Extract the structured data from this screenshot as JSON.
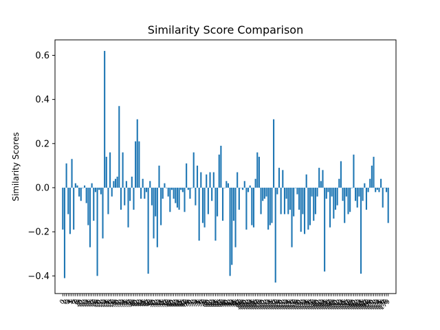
{
  "chart_data": {
    "type": "bar",
    "title": "Similarity Score Comparison",
    "xlabel": "",
    "ylabel": "Similarity Scores",
    "ylim": [
      -0.48,
      0.67
    ],
    "yticks": [
      -0.4,
      -0.2,
      0.0,
      0.2,
      0.4,
      0.6
    ],
    "ytick_labels": [
      "−0.4",
      "−0.2",
      "0.0",
      "0.2",
      "0.4",
      "0.6"
    ],
    "bar_color": "#1f77b4",
    "grid": false,
    "values": [
      -0.19,
      -0.41,
      0.11,
      -0.12,
      -0.21,
      0.13,
      -0.19,
      0.02,
      0.01,
      -0.04,
      -0.06,
      0.0,
      0.01,
      -0.07,
      -0.17,
      -0.27,
      0.02,
      -0.15,
      -0.02,
      -0.4,
      -0.01,
      -0.03,
      -0.23,
      0.62,
      0.14,
      -0.12,
      0.16,
      -0.04,
      0.03,
      0.04,
      0.05,
      0.37,
      -0.1,
      0.16,
      -0.08,
      0.03,
      -0.18,
      -0.06,
      0.05,
      -0.1,
      0.21,
      0.31,
      0.21,
      -0.05,
      0.04,
      -0.05,
      -0.02,
      -0.39,
      0.03,
      -0.08,
      -0.23,
      -0.13,
      -0.27,
      0.1,
      -0.17,
      -0.05,
      0.02,
      0.0,
      -0.04,
      -0.11,
      -0.01,
      -0.05,
      -0.07,
      -0.09,
      -0.1,
      -0.01,
      -0.02,
      -0.11,
      0.11,
      -0.01,
      -0.05,
      0.0,
      0.16,
      -0.08,
      0.1,
      -0.24,
      0.07,
      -0.16,
      -0.18,
      0.06,
      -0.12,
      0.07,
      -0.06,
      0.07,
      -0.24,
      -0.13,
      0.15,
      0.19,
      -0.15,
      0.0,
      0.03,
      0.02,
      -0.4,
      -0.35,
      -0.15,
      -0.27,
      0.07,
      -0.1,
      0.0,
      -0.01,
      0.03,
      -0.19,
      -0.02,
      0.01,
      -0.17,
      -0.18,
      0.04,
      0.16,
      0.14,
      -0.12,
      -0.06,
      -0.05,
      -0.04,
      -0.19,
      -0.17,
      -0.16,
      0.31,
      -0.43,
      -0.03,
      0.09,
      -0.12,
      0.08,
      -0.12,
      -0.05,
      -0.12,
      -0.1,
      -0.27,
      -0.13,
      0.0,
      -0.03,
      -0.1,
      -0.2,
      -0.12,
      -0.21,
      0.06,
      -0.19,
      -0.17,
      -0.04,
      -0.15,
      -0.12,
      -0.04,
      0.09,
      0.03,
      0.08,
      -0.38,
      -0.05,
      -0.02,
      -0.18,
      -0.04,
      -0.14,
      -0.1,
      -0.08,
      0.04,
      0.12,
      -0.06,
      -0.16,
      -0.04,
      -0.12,
      -0.11,
      0.0,
      0.15,
      -0.06,
      -0.09,
      -0.04,
      -0.39,
      -0.06,
      0.02,
      -0.1,
      -0.02,
      0.04,
      0.1,
      0.14,
      -0.02,
      -0.01,
      -0.02,
      0.04,
      -0.09,
      0.0,
      -0.02,
      -0.16
    ]
  }
}
